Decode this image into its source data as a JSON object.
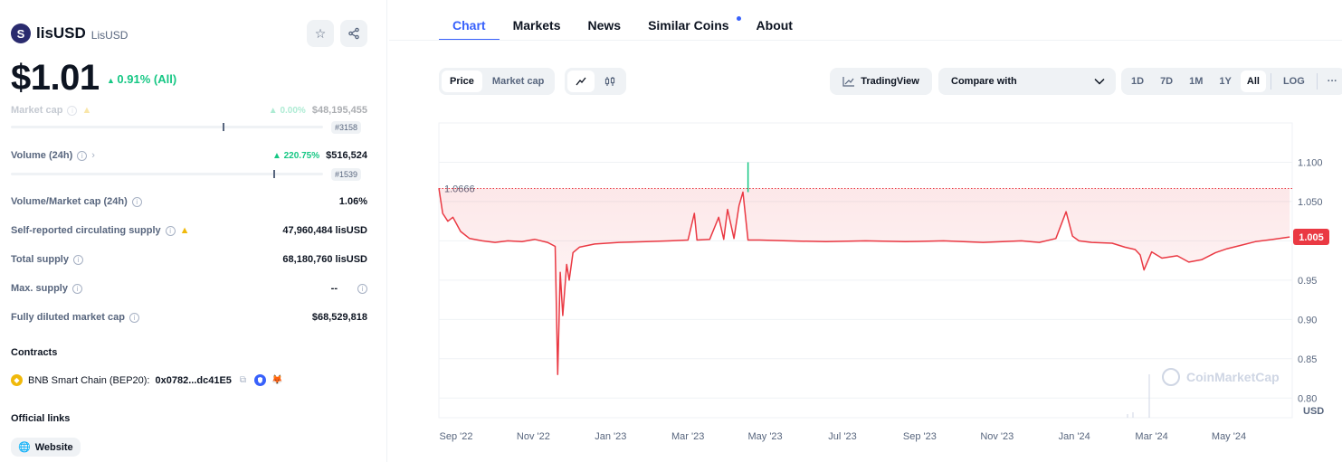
{
  "coin": {
    "name": "lisUSD",
    "symbol": "LisUSD",
    "logo_letter": "S",
    "price": "$1.01",
    "price_change": "0.91% (All)"
  },
  "stats": {
    "market_cap": {
      "label": "Market cap",
      "change": "0.00%",
      "value": "$48,195,455",
      "rank": "#3158"
    },
    "volume": {
      "label": "Volume (24h)",
      "change": "220.75%",
      "value": "$516,524",
      "rank": "#1539"
    },
    "vol_mcap": {
      "label": "Volume/Market cap (24h)",
      "value": "1.06%"
    },
    "circulating": {
      "label": "Self-reported circulating supply",
      "value": "47,960,484 lisUSD"
    },
    "total_supply": {
      "label": "Total supply",
      "value": "68,180,760 lisUSD"
    },
    "max_supply": {
      "label": "Max. supply",
      "value": "--"
    },
    "fdmc": {
      "label": "Fully diluted market cap",
      "value": "$68,529,818"
    }
  },
  "contracts": {
    "title": "Contracts",
    "chain": "BNB Smart Chain (BEP20):",
    "address": "0x0782...dc41E5"
  },
  "links": {
    "title": "Official links",
    "website": "Website"
  },
  "tabs": [
    "Chart",
    "Markets",
    "News",
    "Similar Coins",
    "About"
  ],
  "toolbar": {
    "price": "Price",
    "market_cap": "Market cap",
    "tradingview": "TradingView",
    "compare": "Compare with",
    "ranges": [
      "1D",
      "7D",
      "1M",
      "1Y",
      "All"
    ],
    "log": "LOG",
    "more": "···"
  },
  "colors": {
    "accent": "#3861fb",
    "up": "#16c784",
    "down": "#ea3943"
  },
  "chart_data": {
    "type": "line",
    "title": "",
    "ylabel": "USD",
    "ylim": [
      0.775,
      1.15
    ],
    "y_ticks": [
      0.8,
      0.85,
      0.9,
      0.95,
      1.0,
      1.05,
      1.1
    ],
    "y_tick_labels": [
      "0.80",
      "0.85",
      "0.90",
      "0.95",
      "",
      "1.050",
      "1.100"
    ],
    "x_ticks": [
      "Sep '22",
      "Nov '22",
      "Jan '23",
      "Mar '23",
      "May '23",
      "Jul '23",
      "Sep '23",
      "Nov '23",
      "Jan '24",
      "Mar '24",
      "May '24"
    ],
    "x_range": [
      "2022-09-01",
      "2024-06-30"
    ],
    "reference_line": {
      "value": 1.0666,
      "label": "1.0666"
    },
    "current_label": "1.005",
    "watermark": "CoinMarketCap",
    "series": [
      {
        "x": [
          "2022-09-01",
          "2022-09-04",
          "2022-09-08",
          "2022-09-12",
          "2022-09-18",
          "2022-09-25",
          "2022-10-05",
          "2022-10-15",
          "2022-10-25",
          "2022-11-05",
          "2022-11-15",
          "2022-11-25",
          "2022-12-01",
          "2022-12-03",
          "2022-12-05",
          "2022-12-07",
          "2022-12-10",
          "2022-12-12",
          "2022-12-15",
          "2022-12-20",
          "2023-01-01",
          "2023-01-20",
          "2023-02-10",
          "2023-03-01",
          "2023-03-15",
          "2023-03-20",
          "2023-03-22",
          "2023-04-01",
          "2023-04-08",
          "2023-04-12",
          "2023-04-15",
          "2023-04-20",
          "2023-04-24",
          "2023-04-27",
          "2023-05-01",
          "2023-05-10",
          "2023-06-01",
          "2023-07-01",
          "2023-08-01",
          "2023-09-01",
          "2023-10-01",
          "2023-11-01",
          "2023-12-01",
          "2023-12-15",
          "2023-12-28",
          "2024-01-05",
          "2024-01-10",
          "2024-01-15",
          "2024-01-25",
          "2024-02-10",
          "2024-02-20",
          "2024-02-28",
          "2024-03-03",
          "2024-03-06",
          "2024-03-12",
          "2024-03-20",
          "2024-04-01",
          "2024-04-10",
          "2024-04-20",
          "2024-05-01",
          "2024-05-10",
          "2024-05-20",
          "2024-06-01",
          "2024-06-15",
          "2024-06-28"
        ],
        "y": [
          1.067,
          1.035,
          1.025,
          1.03,
          1.012,
          1.003,
          1.0,
          0.998,
          1.0,
          0.999,
          1.002,
          0.998,
          0.993,
          0.83,
          0.96,
          0.905,
          0.97,
          0.95,
          0.985,
          0.992,
          0.996,
          0.998,
          0.999,
          1.0,
          1.001,
          1.035,
          1.001,
          1.002,
          1.03,
          1.002,
          1.04,
          1.003,
          1.045,
          1.062,
          1.001,
          1.001,
          1.0,
          0.999,
          1.0,
          0.999,
          1.0,
          0.998,
          1.0,
          0.998,
          1.003,
          1.037,
          1.006,
          1.0,
          0.998,
          0.997,
          0.992,
          0.989,
          0.982,
          0.963,
          0.986,
          0.978,
          0.981,
          0.973,
          0.976,
          0.985,
          0.99,
          0.994,
          0.999,
          1.002,
          1.005
        ]
      }
    ],
    "candle_highlight": {
      "date": "2023-05-01",
      "low": 1.062,
      "high": 1.1
    }
  }
}
